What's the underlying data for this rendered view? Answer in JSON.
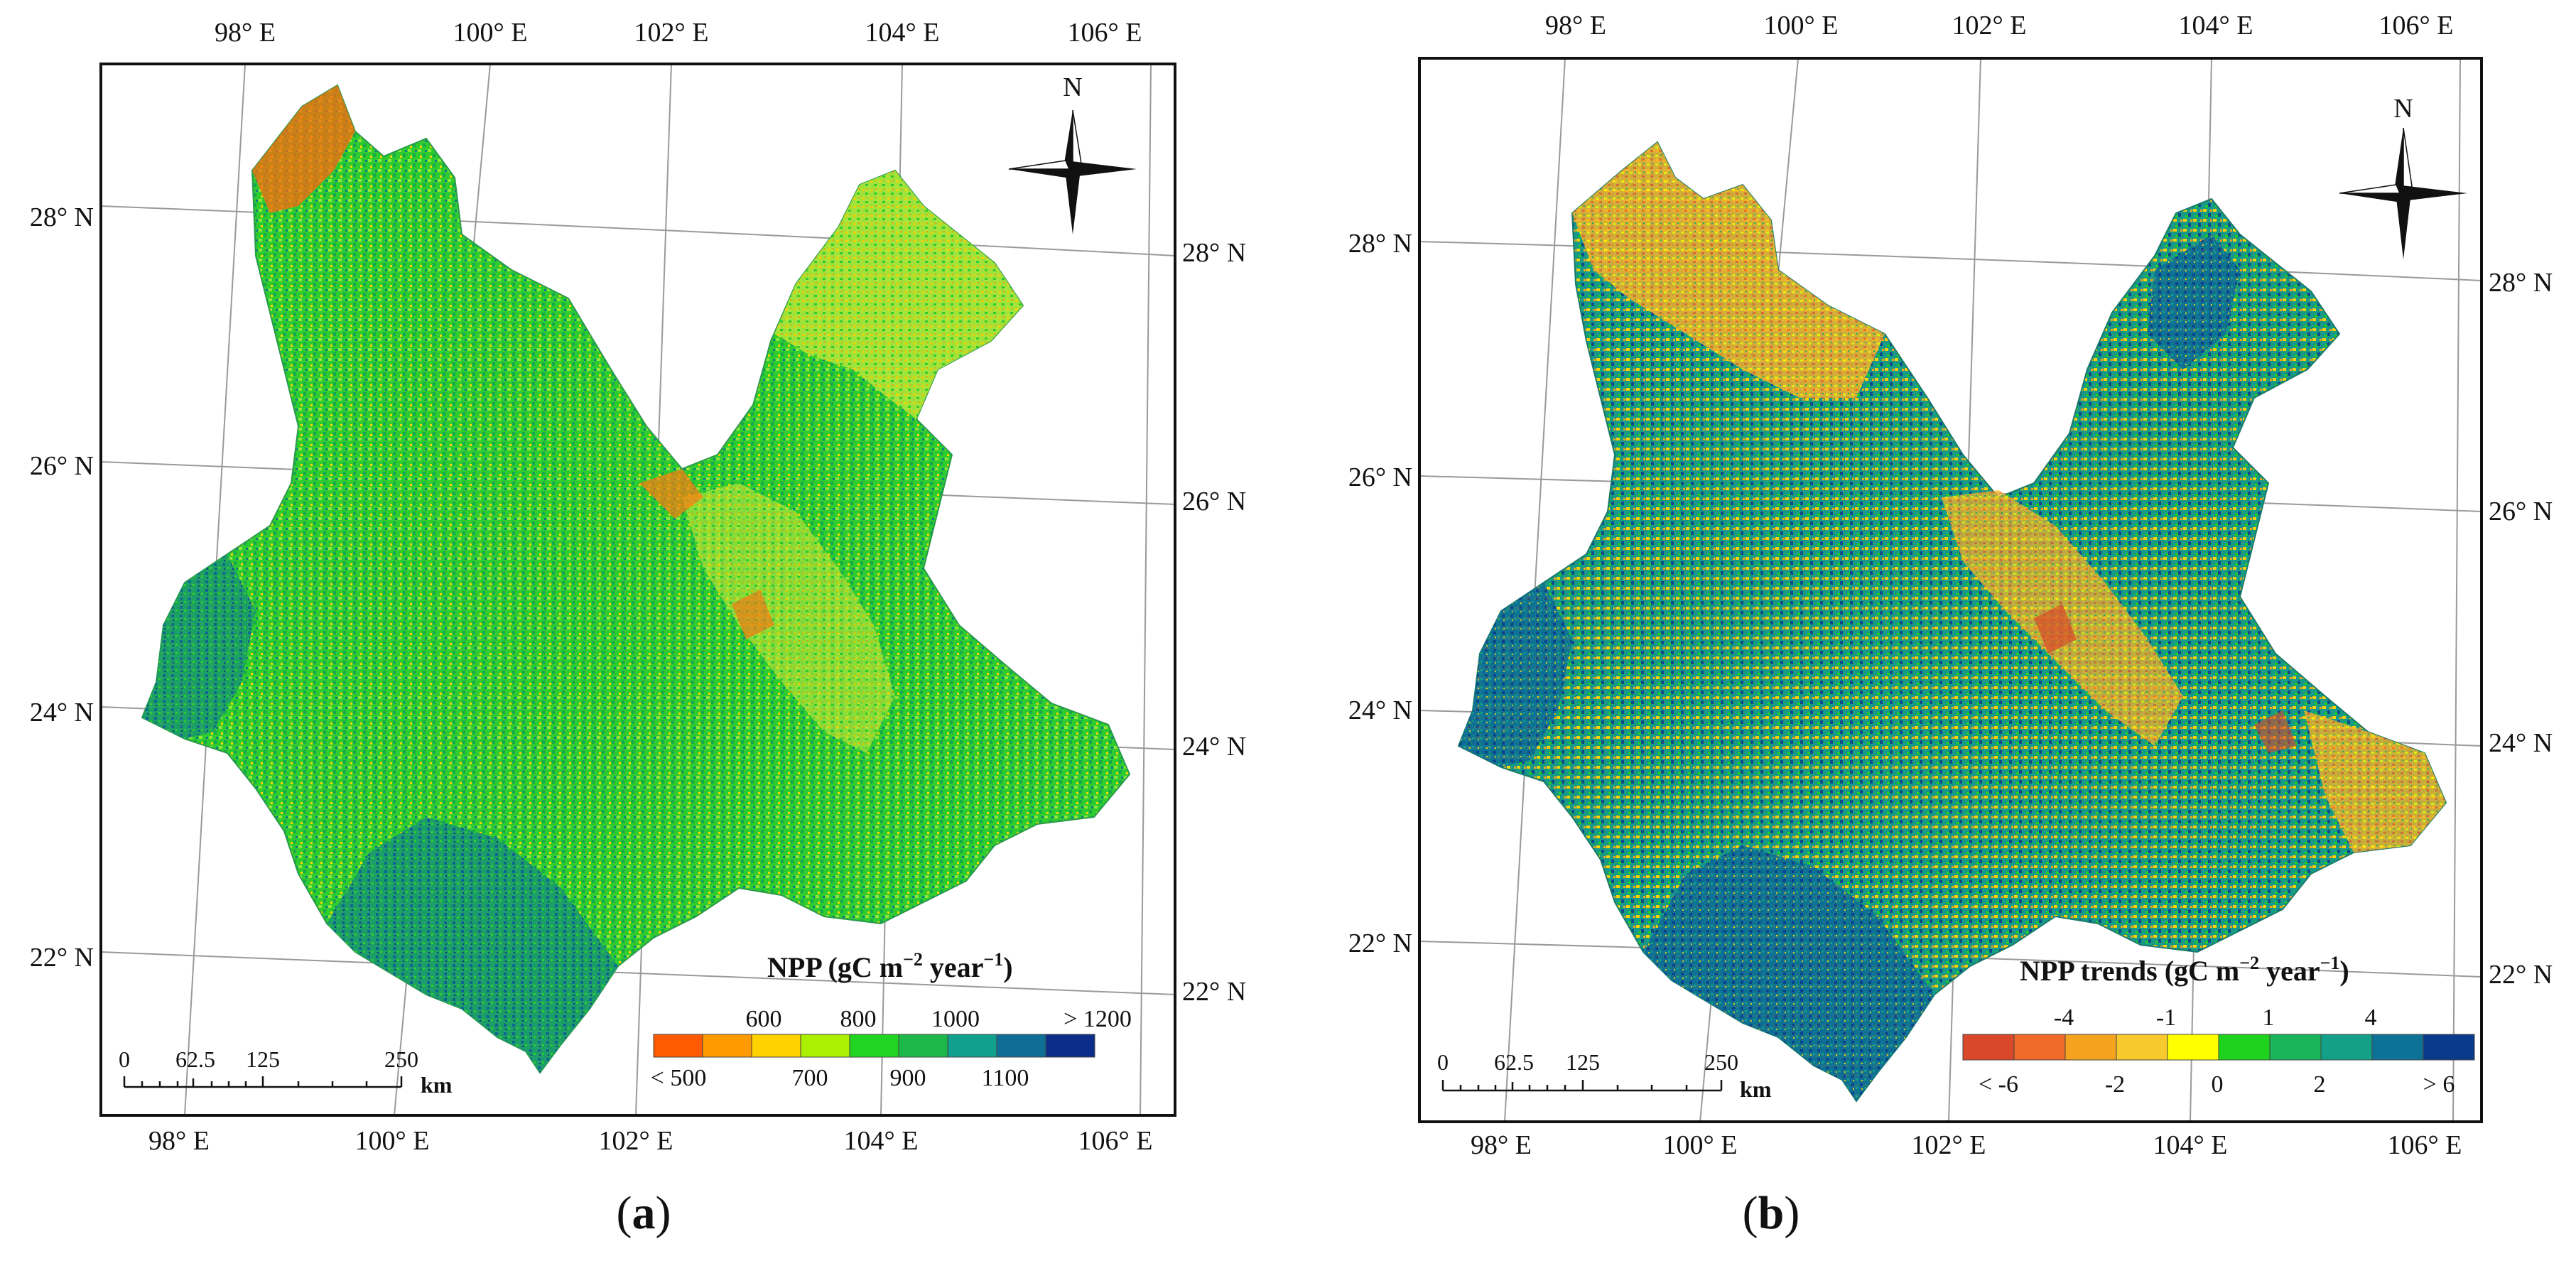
{
  "panels": [
    {
      "id": "a",
      "caption_open": "(",
      "caption_letter": "a",
      "caption_close": ")",
      "lon_labels": [
        "98° E",
        "100° E",
        "102° E",
        "104° E",
        "106° E"
      ],
      "lat_labels": [
        "28° N",
        "26° N",
        "24° N",
        "22° N"
      ],
      "north": "N",
      "legend": {
        "title_main": "NPP (gC m",
        "title_sup1": "−2",
        "title_mid": " year",
        "title_sup2": "−1",
        "title_end": ")",
        "upper_labels": [
          "600",
          "800",
          "1000",
          "> 1200"
        ],
        "lower_labels": [
          "< 500",
          "700",
          "900",
          "1100"
        ],
        "colors": [
          "#ff5a00",
          "#ff9a00",
          "#ffd200",
          "#aaf000",
          "#22d422",
          "#1db84a",
          "#10a08c",
          "#0e6e96",
          "#0a2e8a"
        ]
      },
      "scalebar": {
        "ticks": [
          "0",
          "62.5",
          "125",
          "250"
        ],
        "unit": "km"
      }
    },
    {
      "id": "b",
      "caption_open": "(",
      "caption_letter": "b",
      "caption_close": ")",
      "lon_labels": [
        "98° E",
        "100° E",
        "102° E",
        "104° E",
        "106° E"
      ],
      "lat_labels": [
        "28° N",
        "26° N",
        "24° N",
        "22° N"
      ],
      "north": "N",
      "legend": {
        "title_main": "NPP trends (gC m",
        "title_sup1": "−2",
        "title_mid": " year",
        "title_sup2": "−1",
        "title_end": ")",
        "upper_labels": [
          "-4",
          "-1",
          "1",
          "4"
        ],
        "lower_labels": [
          "< -6",
          "-2",
          "0",
          "2",
          "> 6"
        ],
        "colors": [
          "#d9482b",
          "#f06a2a",
          "#f5a21f",
          "#f7c92c",
          "#ffff00",
          "#1ed21e",
          "#1ab45a",
          "#12a088",
          "#0e7296",
          "#0a3a8a"
        ]
      },
      "scalebar": {
        "ticks": [
          "0",
          "62.5",
          "125",
          "250"
        ],
        "unit": "km"
      }
    }
  ]
}
